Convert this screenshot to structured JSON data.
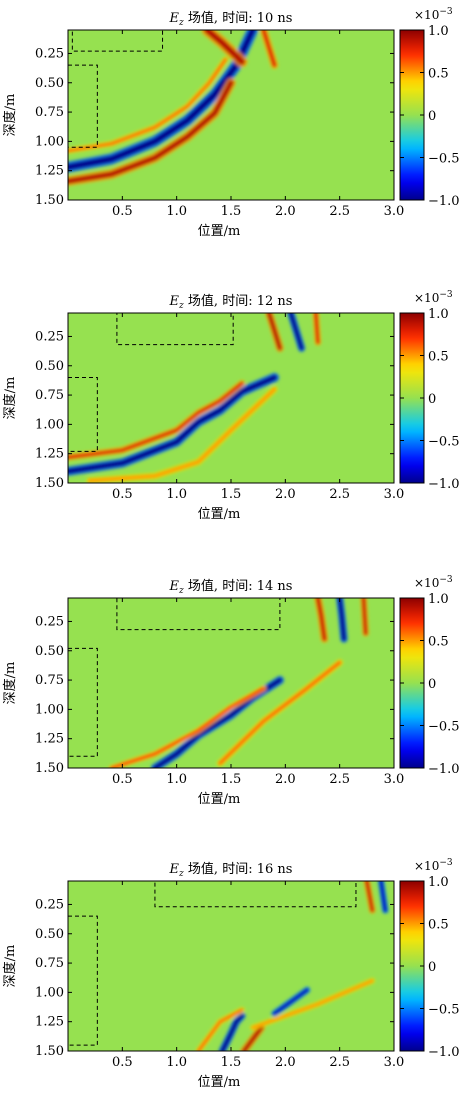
{
  "chart_data": [
    {
      "type": "heatmap",
      "title_var": "E",
      "title_sub": "z",
      "title_rest": "场值, 时间: 10 ns",
      "time_ns": 10,
      "xlabel": "位置/m",
      "ylabel": "深度/m",
      "xlim": [
        0,
        3.0
      ],
      "ylim": [
        0.05,
        1.5
      ],
      "y_inverted": true,
      "xticks": [
        0.5,
        1.0,
        1.5,
        2.0,
        2.5,
        3.0
      ],
      "yticks": [
        0.25,
        0.5,
        0.75,
        1.0,
        1.25,
        1.5
      ],
      "xtick_labels": [
        "0.5",
        "1.0",
        "1.5",
        "2.0",
        "2.5",
        "3.0"
      ],
      "ytick_labels": [
        "0.25",
        "0.50",
        "0.75",
        "1.00",
        "1.25",
        "1.50"
      ],
      "colorbar": {
        "exponent_base": "×10",
        "exponent": "−3",
        "range": [
          -1.0,
          1.0
        ],
        "ticks": [
          1.0,
          0.5,
          0,
          -0.5,
          -1.0
        ],
        "tick_labels": [
          "1.0",
          "0.5",
          "0",
          "−0.5",
          "−1.0"
        ]
      },
      "dashed_boxes": [
        {
          "x0": 0.04,
          "x1": 0.87,
          "y0": 0.05,
          "y1": 0.23
        },
        {
          "x0": 0.0,
          "x1": 0.27,
          "y0": 0.35,
          "y1": 1.05
        }
      ],
      "wavefronts": [
        {
          "x": [
            0.0,
            0.4,
            0.8,
            1.1,
            1.35,
            1.55,
            1.7
          ],
          "y": [
            1.22,
            1.15,
            1.0,
            0.82,
            0.6,
            0.35,
            0.05
          ],
          "amplitude": -1.0,
          "width": 0.06
        },
        {
          "x": [
            0.0,
            0.4,
            0.8,
            1.1,
            1.35,
            1.5
          ],
          "y": [
            1.34,
            1.28,
            1.14,
            0.96,
            0.76,
            0.5
          ],
          "amplitude": 0.9,
          "width": 0.05
        },
        {
          "x": [
            0.0,
            0.4,
            0.8,
            1.1,
            1.3,
            1.45
          ],
          "y": [
            1.08,
            1.02,
            0.88,
            0.7,
            0.5,
            0.3
          ],
          "amplitude": 0.6,
          "width": 0.03
        },
        {
          "x": [
            1.28,
            1.42,
            1.6
          ],
          "y": [
            0.05,
            0.16,
            0.32
          ],
          "amplitude": 0.9,
          "width": 0.06
        },
        {
          "x": [
            1.8,
            1.85,
            1.9
          ],
          "y": [
            0.05,
            0.2,
            0.35
          ],
          "amplitude": 0.8,
          "width": 0.04
        }
      ]
    },
    {
      "type": "heatmap",
      "title_var": "E",
      "title_sub": "z",
      "title_rest": "场值, 时间: 12 ns",
      "time_ns": 12,
      "xlabel": "位置/m",
      "ylabel": "深度/m",
      "xlim": [
        0,
        3.0
      ],
      "ylim": [
        0.05,
        1.5
      ],
      "y_inverted": true,
      "xticks": [
        0.5,
        1.0,
        1.5,
        2.0,
        2.5,
        3.0
      ],
      "yticks": [
        0.25,
        0.5,
        0.75,
        1.0,
        1.25,
        1.5
      ],
      "xtick_labels": [
        "0.5",
        "1.0",
        "1.5",
        "2.0",
        "2.5",
        "3.0"
      ],
      "ytick_labels": [
        "0.25",
        "0.50",
        "0.75",
        "1.00",
        "1.25",
        "1.50"
      ],
      "colorbar": {
        "exponent_base": "×10",
        "exponent": "−3",
        "range": [
          -1.0,
          1.0
        ],
        "ticks": [
          1.0,
          0.5,
          0,
          -0.5,
          -1.0
        ],
        "tick_labels": [
          "1.0",
          "0.5",
          "0",
          "−0.5",
          "−1.0"
        ]
      },
      "dashed_boxes": [
        {
          "x0": 0.45,
          "x1": 1.52,
          "y0": 0.05,
          "y1": 0.32
        },
        {
          "x0": 0.0,
          "x1": 0.27,
          "y0": 0.6,
          "y1": 1.23
        }
      ],
      "wavefronts": [
        {
          "x": [
            0.0,
            0.5,
            1.0,
            1.2,
            1.4,
            1.6,
            1.9
          ],
          "y": [
            1.4,
            1.33,
            1.15,
            0.98,
            0.88,
            0.72,
            0.6
          ],
          "amplitude": -1.0,
          "width": 0.05
        },
        {
          "x": [
            0.0,
            0.5,
            1.0,
            1.2,
            1.4,
            1.6
          ],
          "y": [
            1.28,
            1.22,
            1.05,
            0.9,
            0.8,
            0.65
          ],
          "amplitude": 0.8,
          "width": 0.035
        },
        {
          "x": [
            0.2,
            0.8,
            1.2,
            1.5,
            1.9
          ],
          "y": [
            1.48,
            1.44,
            1.32,
            1.05,
            0.7
          ],
          "amplitude": 0.5,
          "width": 0.035
        },
        {
          "x": [
            1.85,
            1.9,
            1.95
          ],
          "y": [
            0.05,
            0.2,
            0.35
          ],
          "amplitude": 0.9,
          "width": 0.04
        },
        {
          "x": [
            2.05,
            2.1,
            2.15
          ],
          "y": [
            0.05,
            0.2,
            0.35
          ],
          "amplitude": -1.0,
          "width": 0.04
        },
        {
          "x": [
            2.28,
            2.3
          ],
          "y": [
            0.05,
            0.3
          ],
          "amplitude": 0.8,
          "width": 0.035
        }
      ]
    },
    {
      "type": "heatmap",
      "title_var": "E",
      "title_sub": "z",
      "title_rest": "场值, 时间: 14 ns",
      "time_ns": 14,
      "xlabel": "位置/m",
      "ylabel": "深度/m",
      "xlim": [
        0,
        3.0
      ],
      "ylim": [
        0.05,
        1.5
      ],
      "y_inverted": true,
      "xticks": [
        0.5,
        1.0,
        1.5,
        2.0,
        2.5,
        3.0
      ],
      "yticks": [
        0.25,
        0.5,
        0.75,
        1.0,
        1.25,
        1.5
      ],
      "xtick_labels": [
        "0.5",
        "1.0",
        "1.5",
        "2.0",
        "2.5",
        "3.0"
      ],
      "ytick_labels": [
        "0.25",
        "0.50",
        "0.75",
        "1.00",
        "1.25",
        "1.50"
      ],
      "colorbar": {
        "exponent_base": "×10",
        "exponent": "−3",
        "range": [
          -1.0,
          1.0
        ],
        "ticks": [
          1.0,
          0.5,
          0,
          -0.5,
          -1.0
        ],
        "tick_labels": [
          "1.0",
          "0.5",
          "0",
          "−0.5",
          "−1.0"
        ]
      },
      "dashed_boxes": [
        {
          "x0": 0.45,
          "x1": 1.95,
          "y0": 0.05,
          "y1": 0.32
        },
        {
          "x0": 0.0,
          "x1": 0.27,
          "y0": 0.48,
          "y1": 1.4
        }
      ],
      "wavefronts": [
        {
          "x": [
            0.8,
            1.0,
            1.2,
            1.5,
            1.7,
            1.95
          ],
          "y": [
            1.5,
            1.38,
            1.22,
            1.05,
            0.9,
            0.75
          ],
          "amplitude": -1.0,
          "width": 0.045
        },
        {
          "x": [
            0.4,
            0.8,
            1.2,
            1.5,
            1.8
          ],
          "y": [
            1.5,
            1.38,
            1.18,
            0.98,
            0.82
          ],
          "amplitude": 0.7,
          "width": 0.03
        },
        {
          "x": [
            1.4,
            1.8,
            2.2,
            2.5
          ],
          "y": [
            1.46,
            1.1,
            0.82,
            0.6
          ],
          "amplitude": 0.6,
          "width": 0.035
        },
        {
          "x": [
            2.3,
            2.33,
            2.36
          ],
          "y": [
            0.05,
            0.2,
            0.4
          ],
          "amplitude": 0.85,
          "width": 0.04
        },
        {
          "x": [
            2.5,
            2.52,
            2.54
          ],
          "y": [
            0.05,
            0.2,
            0.4
          ],
          "amplitude": -1.0,
          "width": 0.04
        },
        {
          "x": [
            2.72,
            2.74
          ],
          "y": [
            0.05,
            0.35
          ],
          "amplitude": 0.85,
          "width": 0.035
        }
      ]
    },
    {
      "type": "heatmap",
      "title_var": "E",
      "title_sub": "z",
      "title_rest": "场值, 时间: 16 ns",
      "time_ns": 16,
      "xlabel": "位置/m",
      "ylabel": "深度/m",
      "xlim": [
        0,
        3.0
      ],
      "ylim": [
        0.05,
        1.5
      ],
      "y_inverted": true,
      "xticks": [
        0.5,
        1.0,
        1.5,
        2.0,
        2.5,
        3.0
      ],
      "yticks": [
        0.25,
        0.5,
        0.75,
        1.0,
        1.25,
        1.5
      ],
      "xtick_labels": [
        "0.5",
        "1.0",
        "1.5",
        "2.0",
        "2.5",
        "3.0"
      ],
      "ytick_labels": [
        "0.25",
        "0.50",
        "0.75",
        "1.00",
        "1.25",
        "1.50"
      ],
      "colorbar": {
        "exponent_base": "×10",
        "exponent": "−3",
        "range": [
          -1.0,
          1.0
        ],
        "ticks": [
          1.0,
          0.5,
          0,
          -0.5,
          -1.0
        ],
        "tick_labels": [
          "1.0",
          "0.5",
          "0",
          "−0.5",
          "−1.0"
        ]
      },
      "dashed_boxes": [
        {
          "x0": 0.8,
          "x1": 2.65,
          "y0": 0.05,
          "y1": 0.27
        },
        {
          "x0": 0.0,
          "x1": 0.27,
          "y0": 0.35,
          "y1": 1.45
        }
      ],
      "wavefronts": [
        {
          "x": [
            1.42,
            1.5,
            1.55,
            1.6
          ],
          "y": [
            1.5,
            1.35,
            1.25,
            1.2
          ],
          "amplitude": -1.0,
          "width": 0.04
        },
        {
          "x": [
            1.62,
            1.7,
            1.78
          ],
          "y": [
            1.5,
            1.4,
            1.3
          ],
          "amplitude": 0.9,
          "width": 0.04
        },
        {
          "x": [
            1.9,
            2.05,
            2.2
          ],
          "y": [
            1.18,
            1.08,
            0.98
          ],
          "amplitude": -0.9,
          "width": 0.035
        },
        {
          "x": [
            1.2,
            1.4,
            1.6
          ],
          "y": [
            1.5,
            1.25,
            1.15
          ],
          "amplitude": 0.6,
          "width": 0.03
        },
        {
          "x": [
            1.7,
            2.0,
            2.3,
            2.8
          ],
          "y": [
            1.3,
            1.2,
            1.1,
            0.9
          ],
          "amplitude": 0.5,
          "width": 0.03
        },
        {
          "x": [
            2.75,
            2.8
          ],
          "y": [
            0.05,
            0.3
          ],
          "amplitude": 0.85,
          "width": 0.035
        },
        {
          "x": [
            2.88,
            2.92
          ],
          "y": [
            0.05,
            0.3
          ],
          "amplitude": -0.9,
          "width": 0.035
        }
      ]
    }
  ]
}
